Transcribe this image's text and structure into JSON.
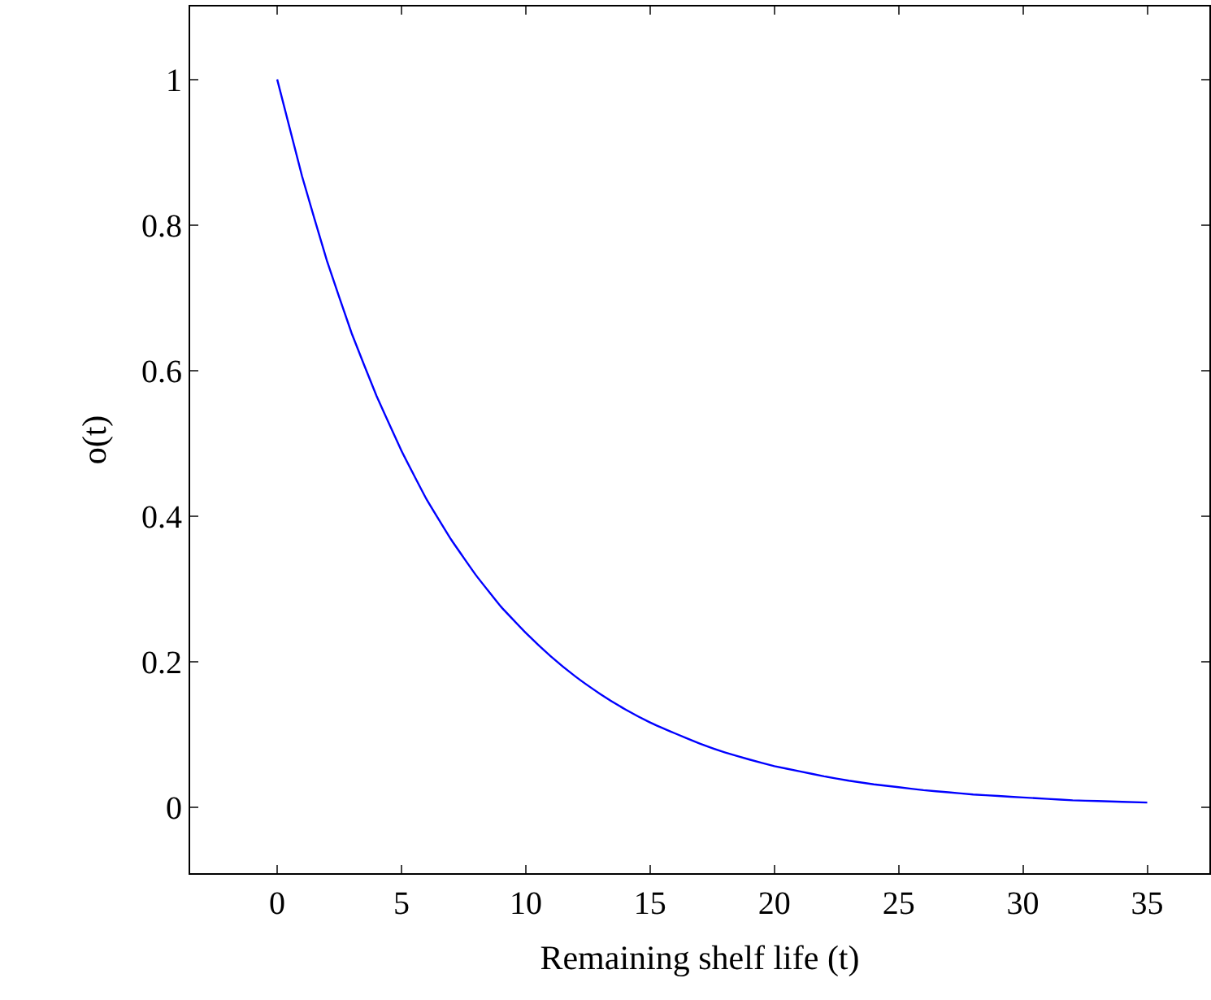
{
  "chart_data": {
    "type": "line",
    "xlabel": "Remaining shelf life (t)",
    "ylabel": "o(t)",
    "x": [
      0,
      1,
      2,
      3,
      4,
      5,
      6,
      7,
      8,
      9,
      10,
      11,
      12,
      13,
      14,
      15,
      16,
      17,
      18,
      19,
      20,
      21,
      22,
      23,
      24,
      25,
      26,
      27,
      28,
      29,
      30,
      31,
      32,
      33,
      34,
      35
    ],
    "series": [
      {
        "color": "#0000ff",
        "values": [
          1,
          0.867,
          0.751,
          0.651,
          0.565,
          0.49,
          0.424,
          0.368,
          0.319,
          0.276,
          0.24,
          0.208,
          0.18,
          0.156,
          0.135,
          0.117,
          0.102,
          0.088,
          0.076,
          0.066,
          0.057,
          0.05,
          0.043,
          0.037,
          0.032,
          0.028,
          0.024,
          0.021,
          0.018,
          0.016,
          0.014,
          0.012,
          0.01,
          0.009,
          0.008,
          0.007
        ]
      }
    ],
    "xlim": [
      -3.5,
      37.5
    ],
    "ylim": [
      -0.09,
      1.1
    ],
    "xticks": [
      0,
      5,
      10,
      15,
      20,
      25,
      30,
      35
    ],
    "yticks": [
      0,
      0.2,
      0.4,
      0.6,
      0.8,
      1
    ],
    "legend": false,
    "marker": "none",
    "line_style": "solid"
  }
}
